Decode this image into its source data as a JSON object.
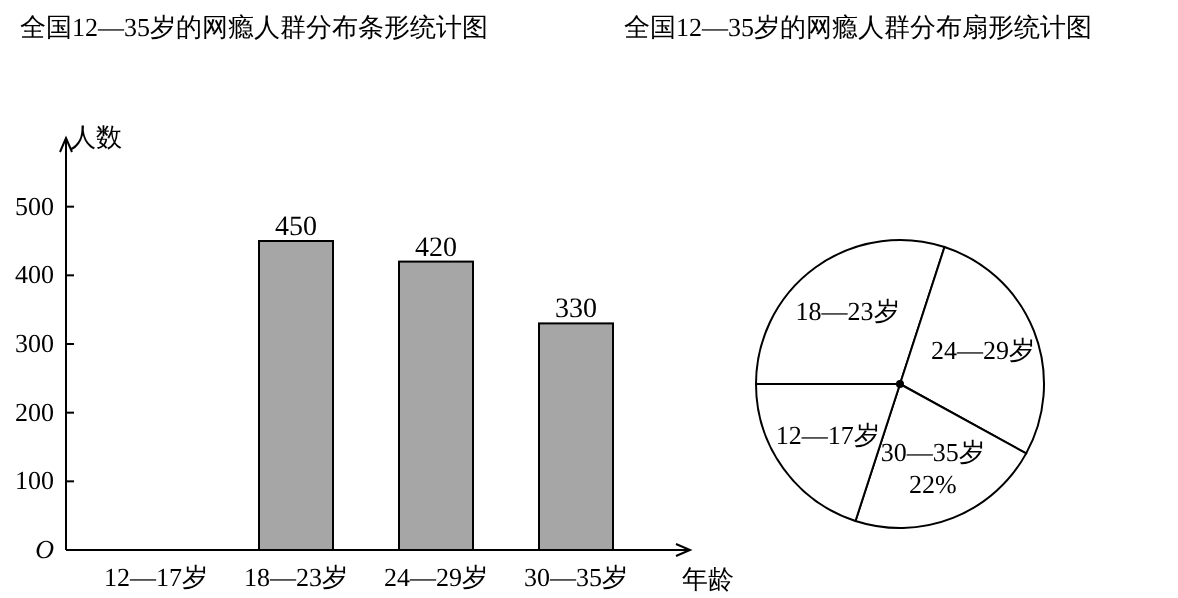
{
  "chart_data": [
    {
      "type": "bar",
      "title": "全国12—35岁的网瘾人群分布条形统计图",
      "xlabel": "年龄",
      "ylabel": "人数",
      "categories": [
        "12—17岁",
        "18—23岁",
        "24—29岁",
        "30—35岁"
      ],
      "values": [
        null,
        450,
        420,
        330
      ],
      "color": "#a6a6a6",
      "data_labels": true,
      "ylim": [
        0,
        600
      ],
      "yticks": [
        {
          "value": 0,
          "label": "O"
        },
        100,
        200,
        300,
        400,
        500
      ]
    },
    {
      "type": "pie",
      "title": "全国12—35岁的网瘾人群分布扇形统计图",
      "categories": [
        "18—23岁",
        "24—29岁",
        "30—35岁",
        "12—17岁"
      ],
      "values": [
        30,
        28,
        22,
        20
      ],
      "colors": [
        "#ffffff",
        "#ffffff",
        "#ffffff",
        "#ffffff"
      ],
      "value_labels": [
        null,
        null,
        "22%",
        null
      ]
    }
  ]
}
